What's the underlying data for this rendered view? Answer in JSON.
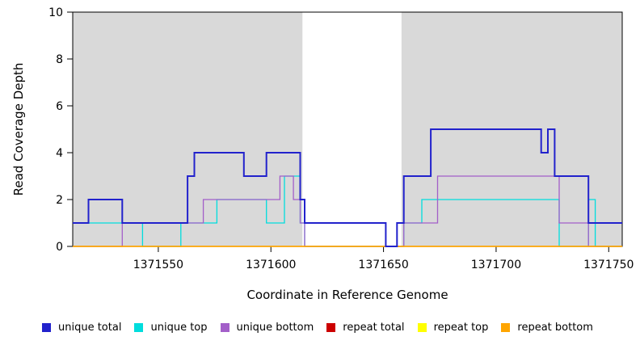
{
  "figure": {
    "title": ""
  },
  "chart_data": {
    "type": "line",
    "subtype": "step",
    "title": "",
    "xlabel": "Coordinate in Reference Genome",
    "ylabel": "Read Coverage Depth",
    "xlim": [
      1371512,
      1371756
    ],
    "ylim": [
      0,
      10
    ],
    "x_ticks": [
      1371550,
      1371600,
      1371650,
      1371700,
      1371750
    ],
    "y_ticks": [
      0,
      2,
      4,
      6,
      8,
      10
    ],
    "grid": false,
    "legend_position": "bottom",
    "background_color": "#ffffff",
    "shaded_regions": [
      {
        "x_start": 1371512,
        "x_end": 1371614,
        "color": "#D9D9D9"
      },
      {
        "x_start": 1371658,
        "x_end": 1371756,
        "color": "#D9D9D9"
      }
    ],
    "series": [
      {
        "name": "unique total",
        "color": "#2222CC",
        "width": 2,
        "points": [
          [
            1371512,
            1
          ],
          [
            1371519,
            2
          ],
          [
            1371534,
            1
          ],
          [
            1371563,
            3
          ],
          [
            1371566,
            4
          ],
          [
            1371588,
            3
          ],
          [
            1371598,
            4
          ],
          [
            1371613,
            2
          ],
          [
            1371615,
            1
          ],
          [
            1371651,
            0
          ],
          [
            1371656,
            1
          ],
          [
            1371659,
            3
          ],
          [
            1371671,
            5
          ],
          [
            1371720,
            4
          ],
          [
            1371723,
            5
          ],
          [
            1371726,
            3
          ],
          [
            1371741,
            1
          ]
        ]
      },
      {
        "name": "unique top",
        "color": "#00DDDD",
        "width": 1.3,
        "points": [
          [
            1371512,
            1
          ],
          [
            1371543,
            0
          ],
          [
            1371560,
            1
          ],
          [
            1371576,
            2
          ],
          [
            1371598,
            1
          ],
          [
            1371606,
            3
          ],
          [
            1371613,
            1
          ],
          [
            1371615,
            0
          ],
          [
            1371659,
            1
          ],
          [
            1371667,
            2
          ],
          [
            1371728,
            0
          ],
          [
            1371741,
            2
          ],
          [
            1371744,
            0
          ]
        ]
      },
      {
        "name": "unique bottom",
        "color": "#A35FC9",
        "width": 1.3,
        "points": [
          [
            1371512,
            0
          ],
          [
            1371534,
            1
          ],
          [
            1371570,
            2
          ],
          [
            1371604,
            3
          ],
          [
            1371610,
            2
          ],
          [
            1371613,
            1
          ],
          [
            1371615,
            0
          ],
          [
            1371659,
            1
          ],
          [
            1371674,
            3
          ],
          [
            1371728,
            1
          ],
          [
            1371741,
            0
          ]
        ]
      },
      {
        "name": "repeat total",
        "color": "#CC0000",
        "width": 1.3,
        "points": [
          [
            1371512,
            0
          ]
        ]
      },
      {
        "name": "repeat top",
        "color": "#FFFF00",
        "width": 1.3,
        "points": [
          [
            1371512,
            0
          ]
        ]
      },
      {
        "name": "repeat bottom",
        "color": "#FFA500",
        "width": 1.5,
        "points": [
          [
            1371512,
            0
          ]
        ]
      }
    ],
    "draw_order": [
      1,
      2,
      3,
      4,
      5,
      0
    ]
  }
}
